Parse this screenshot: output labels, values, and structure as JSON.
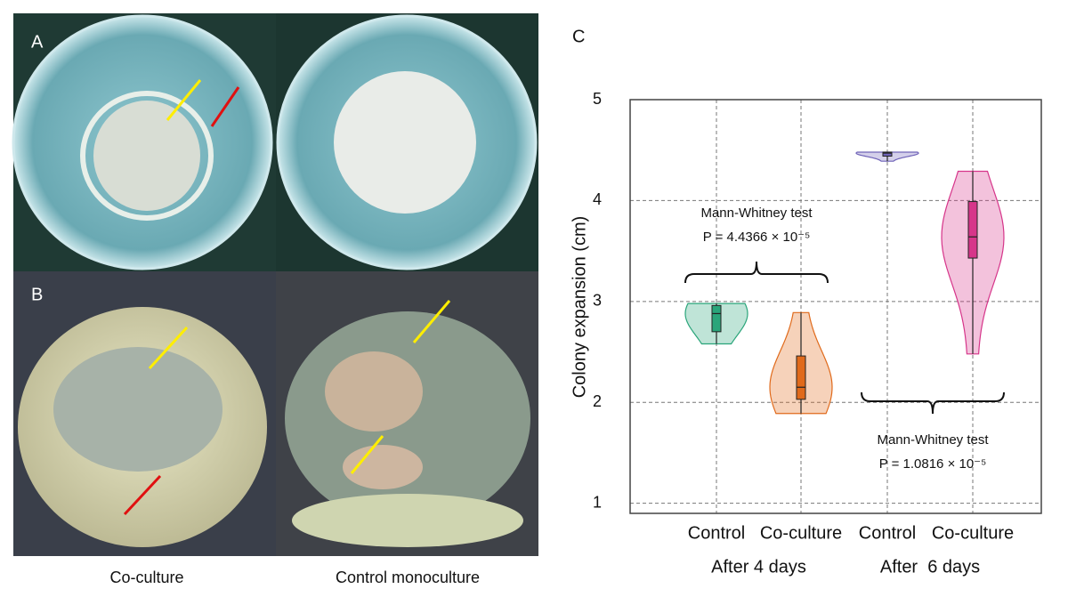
{
  "panels": {
    "a_label": "A",
    "b_label": "B",
    "c_label": "C",
    "left_caption": "Co-culture",
    "right_caption": "Control monoculture"
  },
  "chart_data": {
    "type": "violin",
    "y_label": "Colony expansion (cm)",
    "categories": [
      "Control",
      "Co-culture",
      "Control",
      "Co-culture"
    ],
    "groups": [
      "After 4 days",
      "After  6 days"
    ],
    "violins": [
      {
        "color": "#2aa57a",
        "min": 2.58,
        "q1": 2.7,
        "median": 2.88,
        "q3": 2.96,
        "max": 2.98
      },
      {
        "color": "#e06a1b",
        "min": 1.89,
        "q1": 2.03,
        "median": 2.15,
        "q3": 2.46,
        "max": 2.89
      },
      {
        "color": "#6f63b8",
        "min": 4.39,
        "q1": 4.44,
        "median": 4.47,
        "q3": 4.48,
        "max": 4.48
      },
      {
        "color": "#d6358a",
        "min": 2.48,
        "q1": 3.43,
        "median": 3.64,
        "q3": 3.99,
        "max": 4.29
      }
    ],
    "annotations": [
      {
        "test": "Mann-Whitney test",
        "p": "P = 4.4366 × 10⁻⁵"
      },
      {
        "test": "Mann-Whitney test",
        "p": "P = 1.0816 × 10⁻⁵"
      }
    ],
    "ylim": [
      0.9,
      5
    ],
    "yticks": [
      1,
      2,
      3,
      4,
      5
    ],
    "grid": true
  }
}
